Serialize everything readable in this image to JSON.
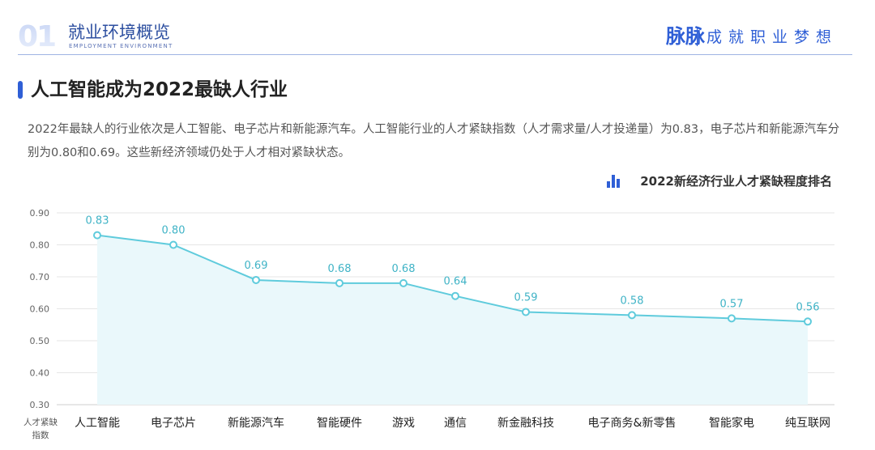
{
  "header": {
    "section_number": "01",
    "section_title": "就业环境概览",
    "section_subtitle": "EMPLOYMENT ENVIRONMENT",
    "brand": "脉脉",
    "slogan": "成就职业梦想"
  },
  "main": {
    "title": "人工智能成为2022最缺人行业",
    "description": "2022年最缺人的行业依次是人工智能、电子芯片和新能源汽车。人工智能行业的人才紧缺指数（人才需求量/人才投递量）为0.83，电子芯片和新能源汽车分别为0.80和0.69。这些新经济领域仍处于人才相对紧缺状态。"
  },
  "colors": {
    "accent": "#2f5fd6",
    "line": "#5fcbdc",
    "area": "#eaf8fb",
    "grid": "#e6e6e6"
  },
  "chart_data": {
    "type": "line",
    "title": "2022新经济行业人才紧缺程度排名",
    "xlabel": "",
    "ylabel": "人才紧缺指数",
    "categories": [
      "人工智能",
      "电子芯片",
      "新能源汽车",
      "智能硬件",
      "游戏",
      "通信",
      "新金融科技",
      "电子商务&新零售",
      "智能家电",
      "纯互联网"
    ],
    "values": [
      0.83,
      0.8,
      0.69,
      0.68,
      0.68,
      0.64,
      0.59,
      0.58,
      0.57,
      0.56
    ],
    "data_labels": [
      "0.83",
      "0.80",
      "0.69",
      "0.68",
      "0.68",
      "0.64",
      "0.59",
      "0.58",
      "0.57",
      "0.56"
    ],
    "ylim": [
      0.3,
      0.9
    ],
    "yticks": [
      "0.30",
      "0.40",
      "0.50",
      "0.60",
      "0.70",
      "0.80",
      "0.90"
    ],
    "grid": true,
    "area_fill": true
  }
}
